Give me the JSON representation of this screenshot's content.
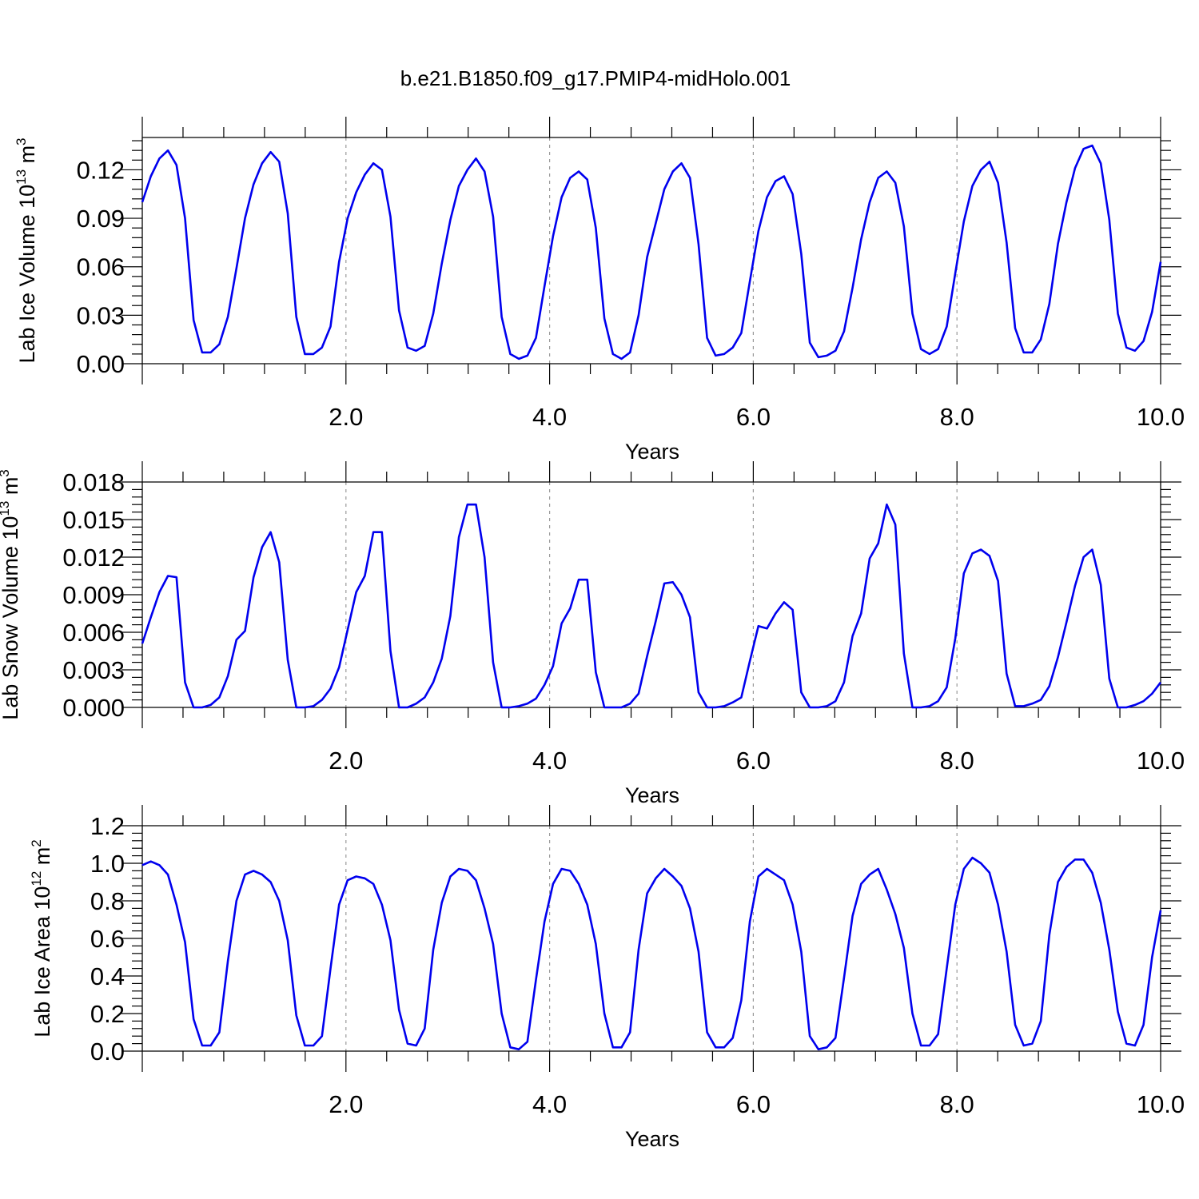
{
  "title": "b.e21.B1850.f09_g17.PMIP4-midHolo.001",
  "colors": {
    "line": "#0000ee",
    "axis": "#000000",
    "grid": "#999999"
  },
  "chart_data": [
    {
      "type": "line",
      "ylabel": {
        "main": "Lab Ice Volume 10",
        "sup": "13",
        "unit_space": " m",
        "unit_sup": "3"
      },
      "xlabel": "Years",
      "xlim": [
        0.0,
        10.0
      ],
      "ylim": [
        0.0,
        0.14
      ],
      "xticks": [
        2.0,
        4.0,
        6.0,
        8.0,
        10.0
      ],
      "xtick_labels": [
        "2.0",
        "4.0",
        "6.0",
        "8.0",
        "10.0"
      ],
      "yticks": [
        0.0,
        0.03,
        0.06,
        0.09,
        0.12
      ],
      "ytick_labels": [
        "0.00",
        "0.03",
        "0.06",
        "0.09",
        "0.12"
      ],
      "series": [
        {
          "values": [
            0.1,
            0.116,
            0.127,
            0.132,
            0.123,
            0.09,
            0.027,
            0.007,
            0.007,
            0.012,
            0.029,
            0.059,
            0.09,
            0.111,
            0.124,
            0.131,
            0.125,
            0.093,
            0.029,
            0.006,
            0.006,
            0.01,
            0.023,
            0.063,
            0.09,
            0.106,
            0.117,
            0.124,
            0.12,
            0.091,
            0.033,
            0.01,
            0.008,
            0.011,
            0.031,
            0.062,
            0.089,
            0.11,
            0.12,
            0.127,
            0.119,
            0.091,
            0.029,
            0.006,
            0.003,
            0.005,
            0.016,
            0.048,
            0.079,
            0.103,
            0.115,
            0.119,
            0.114,
            0.084,
            0.028,
            0.006,
            0.003,
            0.007,
            0.03,
            0.066,
            0.087,
            0.108,
            0.119,
            0.124,
            0.115,
            0.074,
            0.016,
            0.005,
            0.006,
            0.01,
            0.019,
            0.051,
            0.082,
            0.103,
            0.113,
            0.116,
            0.105,
            0.068,
            0.013,
            0.004,
            0.005,
            0.008,
            0.02,
            0.047,
            0.077,
            0.1,
            0.115,
            0.119,
            0.112,
            0.085,
            0.031,
            0.009,
            0.006,
            0.009,
            0.023,
            0.056,
            0.088,
            0.11,
            0.12,
            0.125,
            0.112,
            0.075,
            0.022,
            0.007,
            0.007,
            0.015,
            0.037,
            0.074,
            0.1,
            0.121,
            0.133,
            0.135,
            0.124,
            0.089,
            0.031,
            0.01,
            0.008,
            0.014,
            0.032,
            0.063
          ]
        }
      ]
    },
    {
      "type": "line",
      "ylabel": {
        "main": "Lab Snow Volume 10",
        "sup": "13",
        "unit_space": " m",
        "unit_sup": "3"
      },
      "xlabel": "Years",
      "xlim": [
        0.0,
        10.0
      ],
      "ylim": [
        0.0,
        0.018
      ],
      "xticks": [
        2.0,
        4.0,
        6.0,
        8.0,
        10.0
      ],
      "xtick_labels": [
        "2.0",
        "4.0",
        "6.0",
        "8.0",
        "10.0"
      ],
      "yticks": [
        0.0,
        0.003,
        0.006,
        0.009,
        0.012,
        0.015,
        0.018
      ],
      "ytick_labels": [
        "0.000",
        "0.003",
        "0.006",
        "0.009",
        "0.012",
        "0.015",
        "0.018"
      ],
      "series": [
        {
          "values": [
            0.0051,
            0.0072,
            0.0092,
            0.0105,
            0.0104,
            0.002,
            0.0,
            0.0,
            0.0002,
            0.0008,
            0.0025,
            0.0054,
            0.0061,
            0.0104,
            0.0128,
            0.014,
            0.0116,
            0.0038,
            0.0,
            0.0,
            0.0001,
            0.0006,
            0.0015,
            0.0032,
            0.0062,
            0.0092,
            0.0105,
            0.014,
            0.014,
            0.0045,
            0.0,
            0.0,
            0.0003,
            0.0008,
            0.002,
            0.0039,
            0.0073,
            0.0136,
            0.0162,
            0.0162,
            0.012,
            0.0036,
            0.0,
            0.0,
            0.0001,
            0.0003,
            0.0007,
            0.0018,
            0.0033,
            0.0067,
            0.0079,
            0.0102,
            0.0102,
            0.0028,
            0.0,
            0.0,
            0.0,
            0.0003,
            0.0011,
            0.0041,
            0.0069,
            0.0099,
            0.01,
            0.009,
            0.0072,
            0.0012,
            0.0,
            0.0,
            0.0001,
            0.0004,
            0.0008,
            0.0037,
            0.0065,
            0.0063,
            0.0075,
            0.0084,
            0.0078,
            0.0012,
            0.0,
            0.0,
            0.0001,
            0.0005,
            0.002,
            0.0057,
            0.0075,
            0.0119,
            0.0131,
            0.0162,
            0.0146,
            0.0043,
            0.0,
            0.0,
            0.0001,
            0.0005,
            0.0016,
            0.0055,
            0.0107,
            0.0123,
            0.0126,
            0.0121,
            0.0101,
            0.0027,
            0.0001,
            0.0001,
            0.0003,
            0.0006,
            0.0017,
            0.004,
            0.0068,
            0.0097,
            0.012,
            0.0126,
            0.0098,
            0.0023,
            0.0,
            0.0,
            0.0002,
            0.0005,
            0.0011,
            0.002
          ]
        }
      ]
    },
    {
      "type": "line",
      "ylabel": {
        "main": "Lab Ice Area 10",
        "sup": "12",
        "unit_space": " m",
        "unit_sup": "2"
      },
      "xlabel": "Years",
      "xlim": [
        0.0,
        10.0
      ],
      "ylim": [
        0.0,
        1.2
      ],
      "xticks": [
        2.0,
        4.0,
        6.0,
        8.0,
        10.0
      ],
      "xtick_labels": [
        "2.0",
        "4.0",
        "6.0",
        "8.0",
        "10.0"
      ],
      "yticks": [
        0.0,
        0.2,
        0.4,
        0.6,
        0.8,
        1.0,
        1.2
      ],
      "ytick_labels": [
        "0.0",
        "0.2",
        "0.4",
        "0.6",
        "0.8",
        "1.0",
        "1.2"
      ],
      "series": [
        {
          "values": [
            0.99,
            1.01,
            0.99,
            0.94,
            0.78,
            0.58,
            0.17,
            0.03,
            0.03,
            0.1,
            0.48,
            0.8,
            0.94,
            0.96,
            0.94,
            0.9,
            0.8,
            0.59,
            0.19,
            0.03,
            0.03,
            0.08,
            0.44,
            0.78,
            0.91,
            0.93,
            0.92,
            0.89,
            0.78,
            0.59,
            0.22,
            0.04,
            0.03,
            0.12,
            0.54,
            0.79,
            0.93,
            0.97,
            0.96,
            0.91,
            0.76,
            0.57,
            0.2,
            0.02,
            0.01,
            0.05,
            0.38,
            0.69,
            0.89,
            0.97,
            0.96,
            0.89,
            0.78,
            0.57,
            0.2,
            0.02,
            0.02,
            0.1,
            0.54,
            0.84,
            0.92,
            0.97,
            0.93,
            0.88,
            0.76,
            0.53,
            0.1,
            0.02,
            0.02,
            0.07,
            0.27,
            0.69,
            0.93,
            0.97,
            0.94,
            0.91,
            0.78,
            0.53,
            0.08,
            0.01,
            0.02,
            0.07,
            0.39,
            0.72,
            0.89,
            0.94,
            0.97,
            0.86,
            0.73,
            0.55,
            0.2,
            0.03,
            0.03,
            0.09,
            0.44,
            0.78,
            0.97,
            1.03,
            1.0,
            0.95,
            0.78,
            0.53,
            0.14,
            0.03,
            0.04,
            0.16,
            0.62,
            0.9,
            0.98,
            1.02,
            1.02,
            0.95,
            0.79,
            0.54,
            0.21,
            0.04,
            0.03,
            0.14,
            0.5,
            0.75
          ]
        }
      ]
    }
  ]
}
